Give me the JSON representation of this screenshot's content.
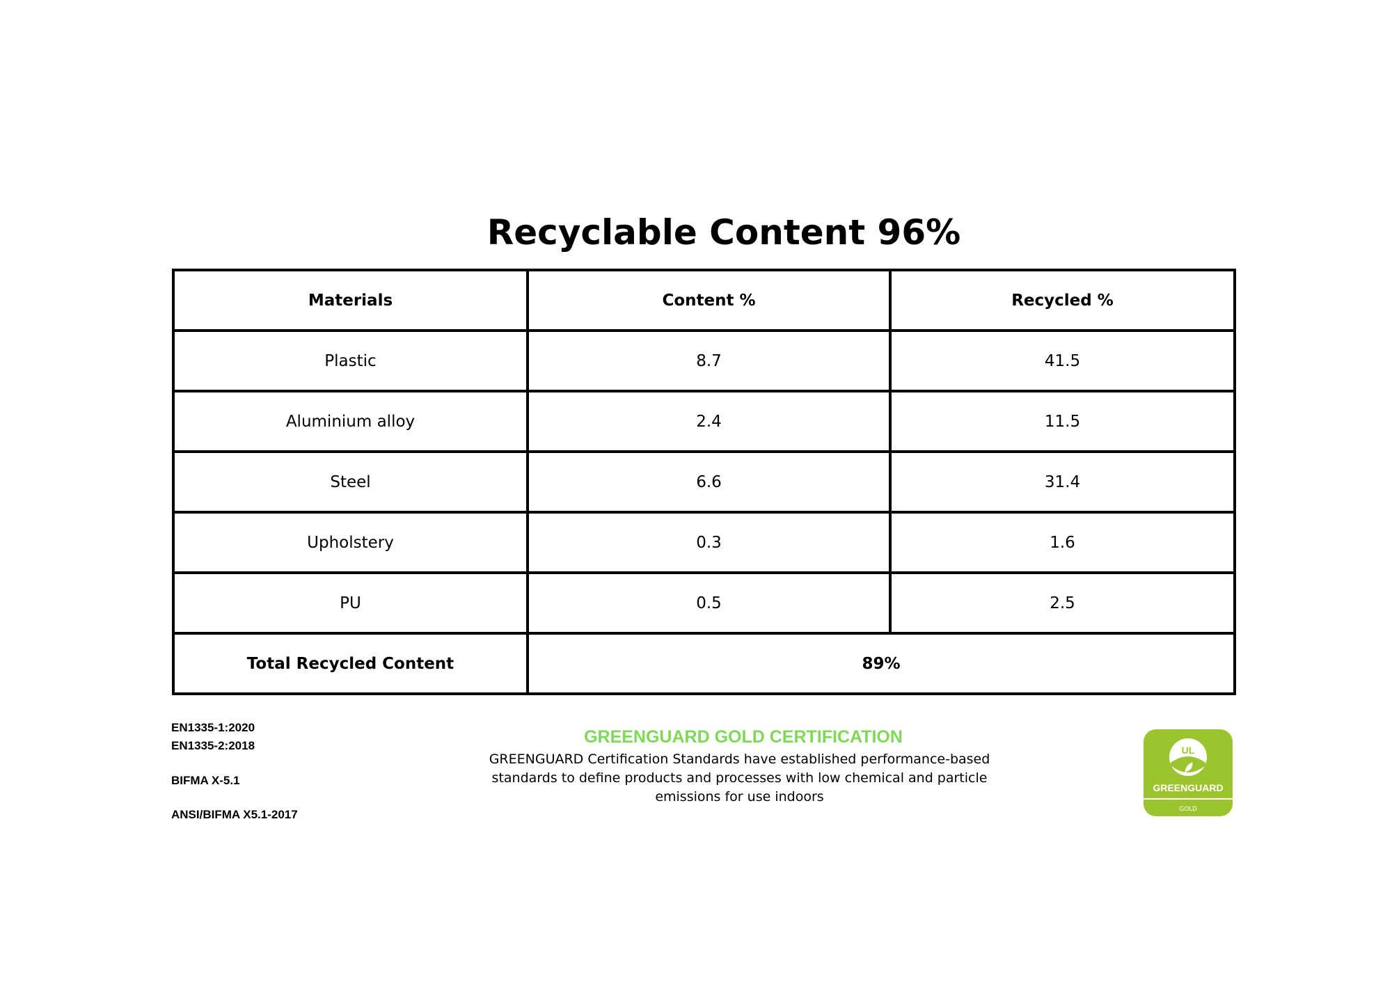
{
  "title": "Recyclable Content 96%",
  "table": {
    "headers": [
      "Materials",
      "Content %",
      "Recycled %"
    ],
    "rows": [
      [
        "Plastic",
        "8.7",
        "41.5"
      ],
      [
        "Aluminium alloy",
        "2.4",
        "11.5"
      ],
      [
        "Steel",
        "6.6",
        "31.4"
      ],
      [
        "Upholstery",
        "0.3",
        "1.6"
      ],
      [
        "PU",
        "0.5",
        "2.5"
      ]
    ],
    "total_label": "Total Recycled Content",
    "total_value": "89%"
  },
  "standards": [
    "EN1335-1:2020",
    "EN1335-2:2018",
    "BIFMA X-5.1",
    "ANSI/BIFMA X5.1-2017"
  ],
  "certification": {
    "heading": "GREENGUARD GOLD CERTIFICATION",
    "heading_color": "#7ed957",
    "body": "GREENGUARD Certification Standards have established performance-based standards to define products and processes with low chemical and particle emissions for use indoors"
  },
  "logo": {
    "mark": "UL",
    "name": "GREENGUARD",
    "level": "GOLD",
    "color": "#9bc42f"
  }
}
